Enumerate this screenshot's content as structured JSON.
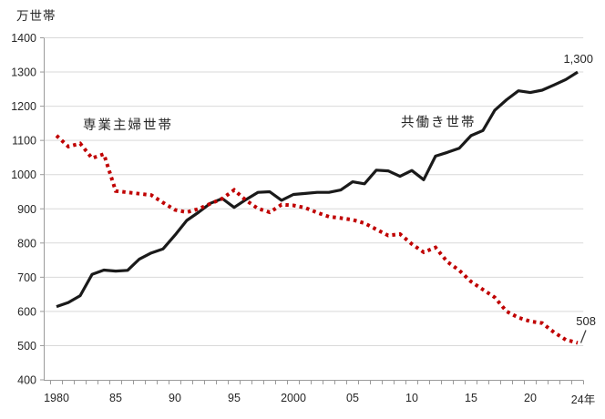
{
  "chart_data": {
    "type": "line",
    "title": "",
    "unit_label": "万世帯",
    "grid": true,
    "legend_position": "inline-labels",
    "ylim": [
      400,
      1400
    ],
    "yticks": [
      400,
      500,
      600,
      700,
      800,
      900,
      1000,
      1100,
      1200,
      1300,
      1400
    ],
    "x_years": [
      1980,
      1981,
      1982,
      1983,
      1984,
      1985,
      1986,
      1987,
      1988,
      1989,
      1990,
      1991,
      1992,
      1993,
      1994,
      1995,
      1996,
      1997,
      1998,
      1999,
      2000,
      2001,
      2002,
      2003,
      2004,
      2005,
      2006,
      2007,
      2008,
      2009,
      2010,
      2011,
      2012,
      2013,
      2014,
      2015,
      2016,
      2017,
      2018,
      2019,
      2020,
      2021,
      2022,
      2023,
      2024
    ],
    "xticks": [
      {
        "year": 1980,
        "label": "1980"
      },
      {
        "year": 1985,
        "label": "85"
      },
      {
        "year": 1990,
        "label": "90"
      },
      {
        "year": 1995,
        "label": "95"
      },
      {
        "year": 2000,
        "label": "2000"
      },
      {
        "year": 2005,
        "label": "05"
      },
      {
        "year": 2010,
        "label": "10"
      },
      {
        "year": 2015,
        "label": "15"
      },
      {
        "year": 2020,
        "label": "20"
      },
      {
        "year": 2024,
        "label": "24年"
      }
    ],
    "series": [
      {
        "name": "専業主婦世帯",
        "color": "#c00000",
        "line_style": "dotted",
        "end_label": "508",
        "values": [
          1114,
          1082,
          1091,
          1048,
          1060,
          952,
          948,
          944,
          940,
          918,
          897,
          890,
          900,
          915,
          930,
          955,
          925,
          901,
          890,
          912,
          910,
          903,
          889,
          877,
          873,
          868,
          858,
          840,
          822,
          826,
          797,
          773,
          787,
          745,
          720,
          687,
          664,
          641,
          600,
          582,
          571,
          566,
          539,
          517,
          508
        ]
      },
      {
        "name": "共働き世帯",
        "color": "#1a1a1a",
        "line_style": "solid",
        "end_label": "1,300",
        "values": [
          614,
          626,
          646,
          708,
          721,
          718,
          720,
          753,
          771,
          783,
          823,
          866,
          890,
          916,
          930,
          904,
          927,
          948,
          950,
          925,
          942,
          945,
          948,
          948,
          955,
          979,
          973,
          1013,
          1011,
          995,
          1012,
          985,
          1054,
          1065,
          1077,
          1114,
          1129,
          1188,
          1219,
          1245,
          1240,
          1247,
          1262,
          1278,
          1300
        ]
      }
    ],
    "colors": {
      "grid": "#d9d9d9",
      "axis": "#9b9b9b",
      "text": "#262626"
    }
  }
}
